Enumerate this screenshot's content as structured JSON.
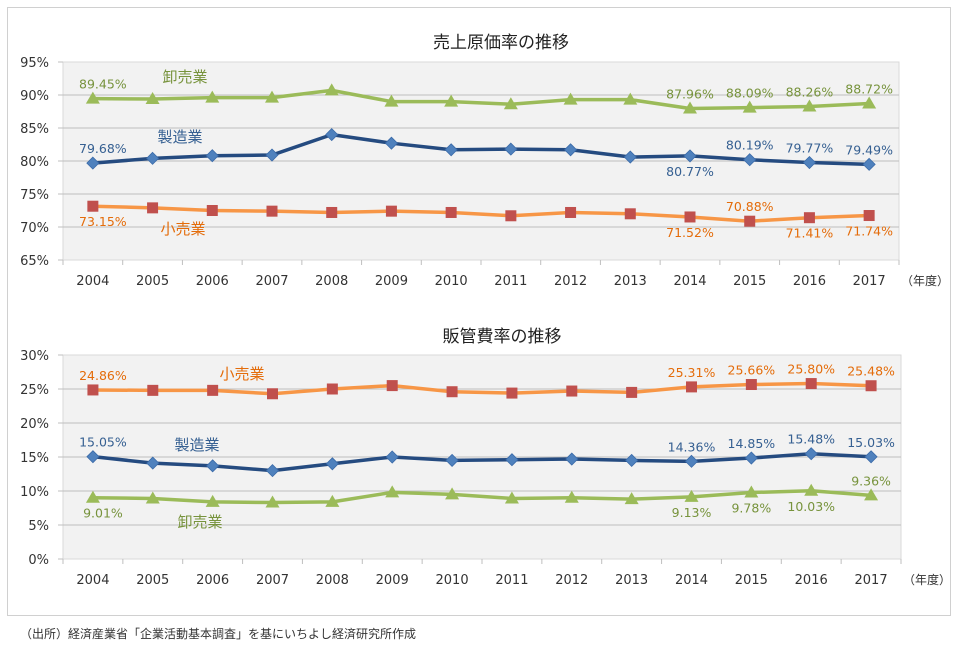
{
  "chart_data": [
    {
      "type": "line",
      "title": "売上原価率の推移",
      "x_unit": "（年度）",
      "categories": [
        "2004",
        "2005",
        "2006",
        "2007",
        "2008",
        "2009",
        "2010",
        "2011",
        "2012",
        "2013",
        "2014",
        "2015",
        "2016",
        "2017"
      ],
      "ylim": [
        65,
        95
      ],
      "yticks": [
        "65%",
        "70%",
        "75%",
        "80%",
        "85%",
        "90%",
        "95%"
      ],
      "grid": true,
      "series": [
        {
          "name": "卸売業",
          "color": "#9bbb59",
          "marker_color": "#9bbb59",
          "label_color": "#77933c",
          "marker": "triangle",
          "values": [
            89.45,
            89.4,
            89.6,
            89.6,
            90.7,
            89.0,
            89.0,
            88.6,
            89.3,
            89.3,
            87.96,
            88.09,
            88.26,
            88.72
          ],
          "labels": {
            "0": "89.45%",
            "10": "87.96%",
            "11": "88.09%",
            "12": "88.26%",
            "13": "88.72%"
          }
        },
        {
          "name": "製造業",
          "color": "#254b80",
          "marker_color": "#4f81bd",
          "label_color": "#366092",
          "marker": "diamond",
          "values": [
            79.68,
            80.4,
            80.8,
            80.9,
            84.0,
            82.7,
            81.7,
            81.8,
            81.7,
            80.6,
            80.77,
            80.19,
            79.77,
            79.49
          ],
          "labels": {
            "0": "79.68%",
            "10": "80.77%",
            "11": "80.19%",
            "12": "79.77%",
            "13": "79.49%"
          }
        },
        {
          "name": "小売業",
          "color": "#f79646",
          "marker_color": "#c0504d",
          "label_color": "#e46c0a",
          "marker": "square",
          "values": [
            73.15,
            72.9,
            72.5,
            72.4,
            72.2,
            72.4,
            72.2,
            71.7,
            72.2,
            72.0,
            71.52,
            70.88,
            71.41,
            71.74
          ],
          "labels": {
            "0": "73.15%",
            "10": "71.52%",
            "11": "70.88%",
            "12": "71.41%",
            "13": "71.74%"
          }
        }
      ]
    },
    {
      "type": "line",
      "title": "販管費率の推移",
      "x_unit": "（年度）",
      "categories": [
        "2004",
        "2005",
        "2006",
        "2007",
        "2008",
        "2009",
        "2010",
        "2011",
        "2012",
        "2013",
        "2014",
        "2015",
        "2016",
        "2017"
      ],
      "ylim": [
        0,
        30
      ],
      "yticks": [
        "0%",
        "5%",
        "10%",
        "15%",
        "20%",
        "25%",
        "30%"
      ],
      "grid": true,
      "series": [
        {
          "name": "小売業",
          "color": "#f79646",
          "marker_color": "#c0504d",
          "label_color": "#e46c0a",
          "marker": "square",
          "values": [
            24.86,
            24.8,
            24.8,
            24.3,
            25.0,
            25.5,
            24.6,
            24.4,
            24.7,
            24.5,
            25.31,
            25.66,
            25.8,
            25.48
          ],
          "labels": {
            "0": "24.86%",
            "10": "25.31%",
            "11": "25.66%",
            "12": "25.80%",
            "13": "25.48%"
          }
        },
        {
          "name": "製造業",
          "color": "#254b80",
          "marker_color": "#4f81bd",
          "label_color": "#366092",
          "marker": "diamond",
          "values": [
            15.05,
            14.1,
            13.7,
            13.0,
            14.0,
            15.0,
            14.5,
            14.6,
            14.7,
            14.5,
            14.36,
            14.85,
            15.48,
            15.03
          ],
          "labels": {
            "0": "15.05%",
            "10": "14.36%",
            "11": "14.85%",
            "12": "15.48%",
            "13": "15.03%"
          }
        },
        {
          "name": "卸売業",
          "color": "#9bbb59",
          "marker_color": "#9bbb59",
          "label_color": "#77933c",
          "marker": "triangle",
          "values": [
            9.01,
            8.9,
            8.4,
            8.3,
            8.4,
            9.8,
            9.5,
            8.9,
            9.0,
            8.8,
            9.13,
            9.78,
            10.03,
            9.36
          ],
          "labels": {
            "0": "9.01%",
            "10": "9.13%",
            "11": "9.78%",
            "12": "10.03%",
            "13": "9.36%"
          }
        }
      ]
    }
  ],
  "footer": "（出所）経済産業省「企業活動基本調査」を基にいちよし経済研究所作成"
}
